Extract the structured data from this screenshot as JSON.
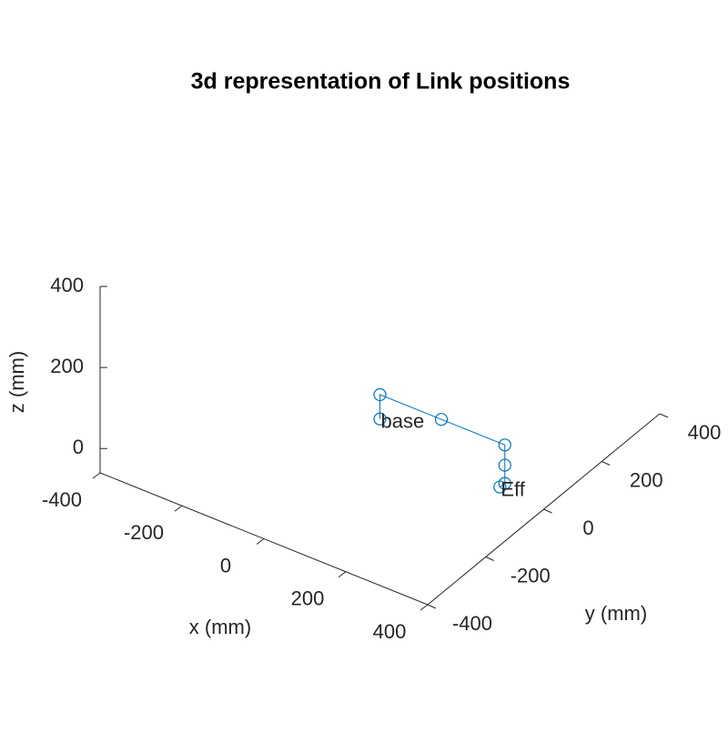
{
  "chart_data": {
    "type": "line3d",
    "title": "3d representation of Link positions",
    "xlabel": "x (mm)",
    "ylabel": "y (mm)",
    "zlabel": "z (mm)",
    "xlim": [
      -400,
      400
    ],
    "ylim": [
      -400,
      400
    ],
    "zlim": [
      -60,
      400
    ],
    "xticks": [
      -400,
      -200,
      0,
      200,
      400
    ],
    "yticks": [
      -400,
      -200,
      0,
      200,
      400
    ],
    "zticks": [
      0,
      200,
      400
    ],
    "series": [
      {
        "color": "#0072bd",
        "x": [
          0,
          0,
          150,
          305,
          305,
          305,
          300
        ],
        "y": [
          0,
          0,
          0,
          0,
          0,
          0,
          -10
        ],
        "z": [
          0,
          60,
          60,
          60,
          10,
          -35,
          -40
        ]
      }
    ],
    "annotations": [
      {
        "text": "base",
        "point": 0
      },
      {
        "text": "Eff",
        "point": 6
      }
    ]
  }
}
